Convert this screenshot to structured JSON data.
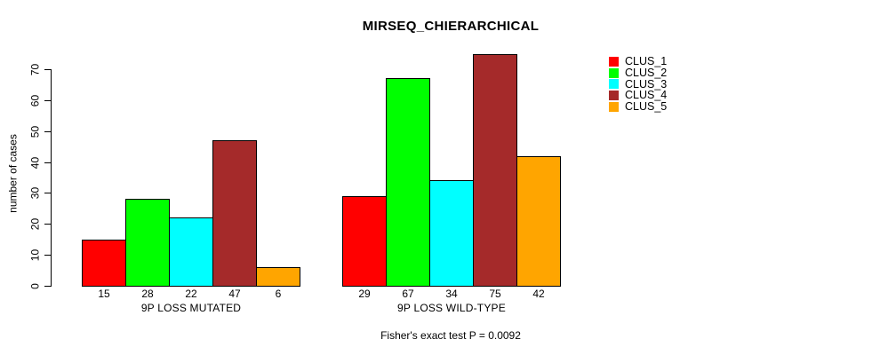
{
  "page": {
    "background": "#ffffff"
  },
  "chart_data": {
    "type": "bar",
    "title": "MIRSEQ_CHIERARCHICAL",
    "xlabel": "",
    "ylabel": "number of cases",
    "annotation": "Fisher's exact test P = 0.0092",
    "ylim": [
      0,
      70
    ],
    "yticks": [
      0,
      10,
      20,
      30,
      40,
      50,
      60,
      70
    ],
    "grid": false,
    "legend_position": "right",
    "categories": [
      "9P LOSS MUTATED",
      "9P LOSS WILD-TYPE"
    ],
    "series": [
      {
        "name": "CLUS_1",
        "color": "#ff0000",
        "values": [
          15,
          29
        ]
      },
      {
        "name": "CLUS_2",
        "color": "#00ff00",
        "values": [
          28,
          67
        ]
      },
      {
        "name": "CLUS_3",
        "color": "#00ffff",
        "values": [
          22,
          34
        ]
      },
      {
        "name": "CLUS_4",
        "color": "#a52a2a",
        "values": [
          47,
          75
        ]
      },
      {
        "name": "CLUS_5",
        "color": "#ffa500",
        "values": [
          6,
          42
        ]
      }
    ],
    "bar_value_labels": [
      [
        15,
        28,
        22,
        47,
        6
      ],
      [
        29,
        67,
        34,
        75,
        42
      ]
    ],
    "bar_border_color": "#000000",
    "text_color": "#000000"
  }
}
